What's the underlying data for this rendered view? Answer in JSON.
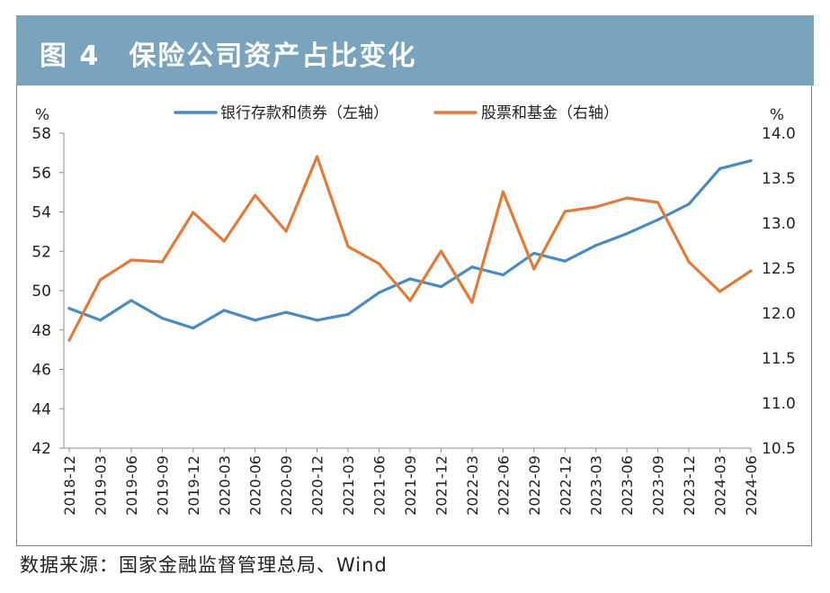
{
  "title": "图 4　保险公司资产占比变化",
  "source": "数据来源：国家金融监督管理总局、Wind",
  "chart_data": {
    "type": "line",
    "title": "图 4　保险公司资产占比变化",
    "x": [
      "2018-12",
      "2019-03",
      "2019-06",
      "2019-09",
      "2019-12",
      "2020-03",
      "2020-06",
      "2020-09",
      "2020-12",
      "2021-03",
      "2021-06",
      "2021-09",
      "2021-12",
      "2022-03",
      "2022-06",
      "2022-09",
      "2022-12",
      "2023-03",
      "2023-06",
      "2023-09",
      "2023-12",
      "2024-03",
      "2024-06"
    ],
    "left_axis": {
      "unit": "%",
      "ylim": [
        42,
        58
      ],
      "ticks": [
        "42",
        "44",
        "46",
        "48",
        "50",
        "52",
        "54",
        "56",
        "58"
      ]
    },
    "right_axis": {
      "unit": "%",
      "ylim": [
        10.5,
        14.0
      ],
      "ticks": [
        "10.5",
        "11.0",
        "11.5",
        "12.0",
        "12.5",
        "13.0",
        "13.5",
        "14.0"
      ]
    },
    "series": [
      {
        "name": "银行存款和债券（左轴）",
        "axis": "left",
        "color": "#4a8bc2",
        "values": [
          49.1,
          48.5,
          49.5,
          48.6,
          48.1,
          49.0,
          48.5,
          48.9,
          48.5,
          48.8,
          49.9,
          50.6,
          50.2,
          51.2,
          50.8,
          51.9,
          51.5,
          52.3,
          52.9,
          53.6,
          54.4,
          56.2,
          56.6
        ]
      },
      {
        "name": "股票和基金（右轴）",
        "axis": "right",
        "color": "#e07b3c",
        "values": [
          11.7,
          12.37,
          12.59,
          12.57,
          13.12,
          12.8,
          13.31,
          12.91,
          13.74,
          12.74,
          12.55,
          12.14,
          12.69,
          12.12,
          13.35,
          12.49,
          13.13,
          13.18,
          13.28,
          13.23,
          12.57,
          12.24,
          12.47
        ]
      }
    ],
    "grid": false,
    "legend": "top-center"
  }
}
